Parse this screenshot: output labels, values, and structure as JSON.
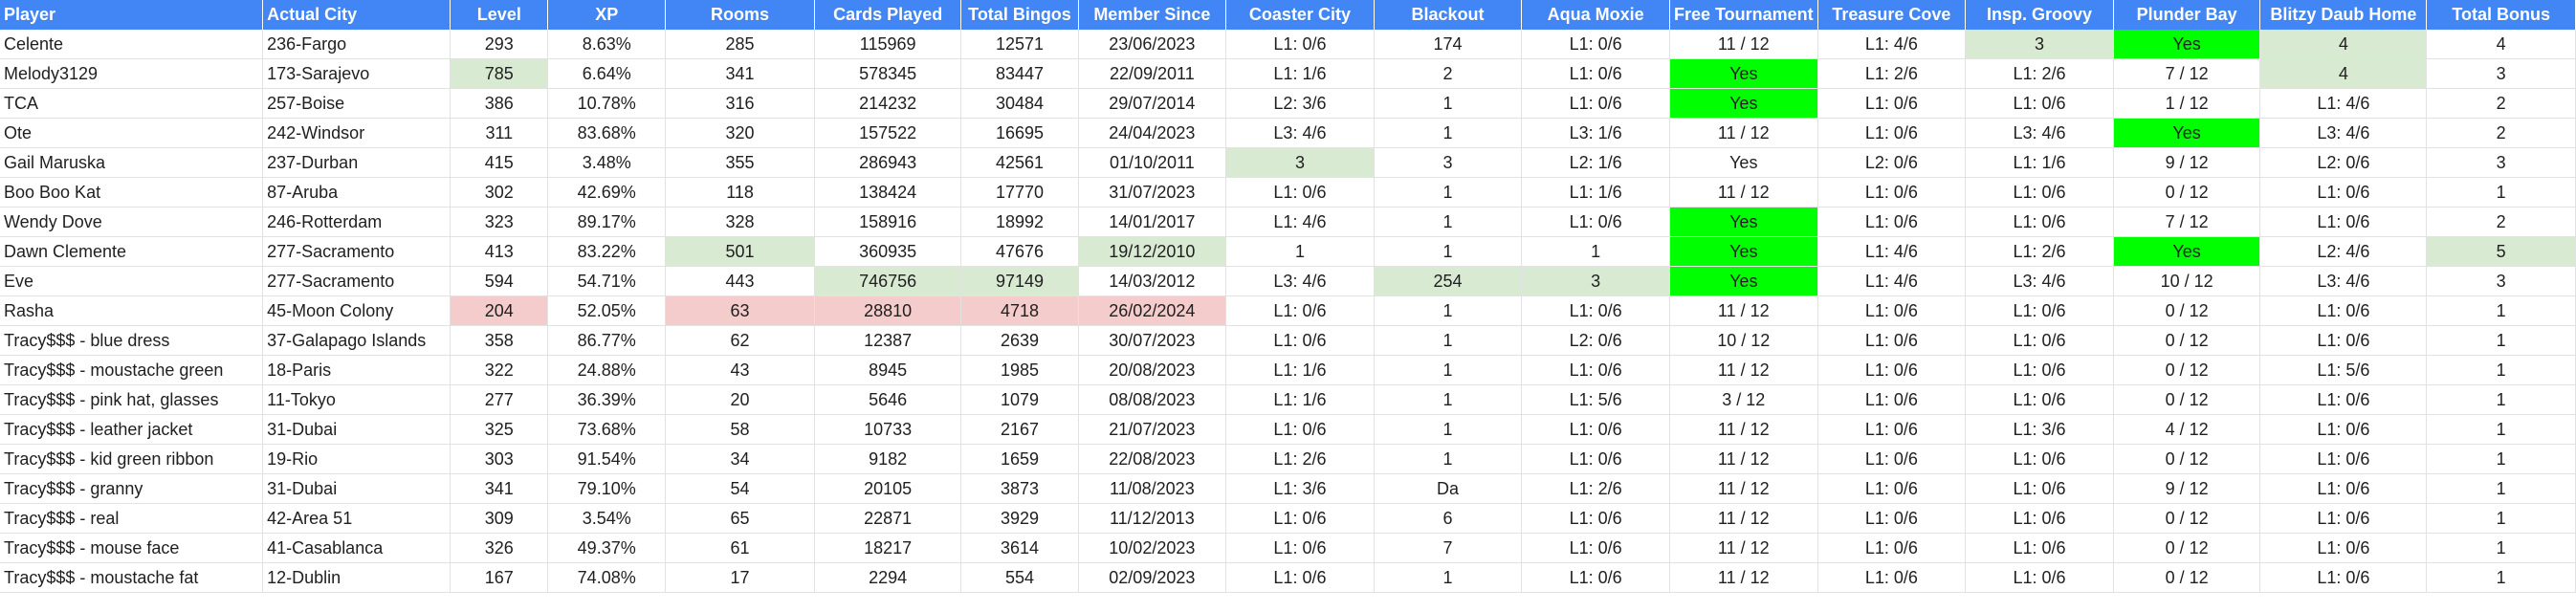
{
  "colors": {
    "header_bg": "#4285f4",
    "header_text": "#ffffff",
    "light_green": "#d9ead3",
    "lime": "#00ff00",
    "light_red": "#f4cccc",
    "gridline": "#e2e2e2"
  },
  "columns": [
    "Player",
    "Actual City",
    "Level",
    "XP",
    "Rooms",
    "Cards Played",
    "Total Bingos",
    "Member Since",
    "Coaster City",
    "Blackout",
    "Aqua Moxie",
    "Free Tournament",
    "Treasure Cove",
    "Insp. Groovy",
    "Plunder Bay",
    "Blitzy Daub Home",
    "Total Bonus"
  ],
  "rows": [
    {
      "cells": [
        "Celente",
        "236-Fargo",
        "293",
        "8.63%",
        "285",
        "115969",
        "12571",
        "23/06/2023",
        "L1: 0/6",
        "174",
        "L1: 0/6",
        "11 / 12",
        "L1: 4/6",
        "3",
        "Yes",
        "4",
        "4"
      ],
      "hl": {
        "13": "green",
        "14": "lime",
        "15": "green"
      }
    },
    {
      "cells": [
        "Melody3129",
        "173-Sarajevo",
        "785",
        "6.64%",
        "341",
        "578345",
        "83447",
        "22/09/2011",
        "L1: 1/6",
        "2",
        "L1: 0/6",
        "Yes",
        "L1: 2/6",
        "L1: 2/6",
        "7 / 12",
        "4",
        "3"
      ],
      "hl": {
        "2": "green",
        "11": "lime",
        "15": "green"
      }
    },
    {
      "cells": [
        "TCA",
        "257-Boise",
        "386",
        "10.78%",
        "316",
        "214232",
        "30484",
        "29/07/2014",
        "L2: 3/6",
        "1",
        "L1: 0/6",
        "Yes",
        "L1: 0/6",
        "L1: 0/6",
        "1 / 12",
        "L1: 4/6",
        "2"
      ],
      "hl": {
        "11": "lime"
      }
    },
    {
      "cells": [
        "Ote",
        "242-Windsor",
        "311",
        "83.68%",
        "320",
        "157522",
        "16695",
        "24/04/2023",
        "L3: 4/6",
        "1",
        "L3: 1/6",
        "11 / 12",
        "L1: 0/6",
        "L3: 4/6",
        "Yes",
        "L3: 4/6",
        "2"
      ],
      "hl": {
        "14": "lime"
      }
    },
    {
      "cells": [
        "Gail Maruska",
        "237-Durban",
        "415",
        "3.48%",
        "355",
        "286943",
        "42561",
        "01/10/2011",
        "3",
        "3",
        "L2: 1/6",
        "Yes",
        "L2: 0/6",
        "L1: 1/6",
        "9 / 12",
        "L2: 0/6",
        "3"
      ],
      "hl": {
        "8": "green"
      }
    },
    {
      "cells": [
        "Boo Boo Kat",
        "87-Aruba",
        "302",
        "42.69%",
        "118",
        "138424",
        "17770",
        "31/07/2023",
        "L1: 0/6",
        "1",
        "L1: 1/6",
        "11 / 12",
        "L1: 0/6",
        "L1: 0/6",
        "0 / 12",
        "L1: 0/6",
        "1"
      ],
      "hl": {}
    },
    {
      "cells": [
        "Wendy Dove",
        "246-Rotterdam",
        "323",
        "89.17%",
        "328",
        "158916",
        "18992",
        "14/01/2017",
        "L1: 4/6",
        "1",
        "L1: 0/6",
        "Yes",
        "L1: 0/6",
        "L1: 0/6",
        "7 / 12",
        "L1: 0/6",
        "2"
      ],
      "hl": {
        "11": "lime"
      }
    },
    {
      "cells": [
        "Dawn Clemente",
        "277-Sacramento",
        "413",
        "83.22%",
        "501",
        "360935",
        "47676",
        "19/12/2010",
        "1",
        "1",
        "1",
        "Yes",
        "L1: 4/6",
        "L1: 2/6",
        "Yes",
        "L2: 4/6",
        "5"
      ],
      "hl": {
        "4": "green",
        "7": "green",
        "11": "lime",
        "14": "lime",
        "16": "green"
      }
    },
    {
      "cells": [
        "Eve",
        "277-Sacramento",
        "594",
        "54.71%",
        "443",
        "746756",
        "97149",
        "14/03/2012",
        "L3: 4/6",
        "254",
        "3",
        "Yes",
        "L1: 4/6",
        "L3: 4/6",
        "10 / 12",
        "L3: 4/6",
        "3"
      ],
      "hl": {
        "5": "green",
        "6": "green",
        "9": "green",
        "10": "green",
        "11": "lime"
      }
    },
    {
      "cells": [
        "Rasha",
        "45-Moon Colony",
        "204",
        "52.05%",
        "63",
        "28810",
        "4718",
        "26/02/2024",
        "L1: 0/6",
        "1",
        "L1: 0/6",
        "11 / 12",
        "L1: 0/6",
        "L1: 0/6",
        "0 / 12",
        "L1: 0/6",
        "1"
      ],
      "hl": {
        "2": "red",
        "4": "red",
        "5": "red",
        "6": "red",
        "7": "red"
      }
    },
    {
      "cells": [
        "Tracy$$$ - blue dress",
        "37-Galapago Islands",
        "358",
        "86.77%",
        "62",
        "12387",
        "2639",
        "30/07/2023",
        "L1: 0/6",
        "1",
        "L2: 0/6",
        "10 / 12",
        "L1: 0/6",
        "L1: 0/6",
        "0 / 12",
        "L1: 0/6",
        "1"
      ],
      "hl": {}
    },
    {
      "cells": [
        "Tracy$$$ - moustache green",
        "18-Paris",
        "322",
        "24.88%",
        "43",
        "8945",
        "1985",
        "20/08/2023",
        "L1: 1/6",
        "1",
        "L1: 0/6",
        "11 / 12",
        "L1: 0/6",
        "L1: 0/6",
        "0 / 12",
        "L1: 5/6",
        "1"
      ],
      "hl": {}
    },
    {
      "cells": [
        "Tracy$$$ - pink hat, glasses",
        "11-Tokyo",
        "277",
        "36.39%",
        "20",
        "5646",
        "1079",
        "08/08/2023",
        "L1: 1/6",
        "1",
        "L1: 5/6",
        "3 / 12",
        "L1: 0/6",
        "L1: 0/6",
        "0 / 12",
        "L1: 0/6",
        "1"
      ],
      "hl": {}
    },
    {
      "cells": [
        "Tracy$$$ - leather jacket",
        "31-Dubai",
        "325",
        "73.68%",
        "58",
        "10733",
        "2167",
        "21/07/2023",
        "L1: 0/6",
        "1",
        "L1: 0/6",
        "11 / 12",
        "L1: 0/6",
        "L1: 3/6",
        "4 / 12",
        "L1: 0/6",
        "1"
      ],
      "hl": {}
    },
    {
      "cells": [
        "Tracy$$$ - kid green ribbon",
        "19-Rio",
        "303",
        "91.54%",
        "34",
        "9182",
        "1659",
        "22/08/2023",
        "L1: 2/6",
        "1",
        "L1: 0/6",
        "11 / 12",
        "L1: 0/6",
        "L1: 0/6",
        "0 / 12",
        "L1: 0/6",
        "1"
      ],
      "hl": {}
    },
    {
      "cells": [
        "Tracy$$$ - granny",
        "31-Dubai",
        "341",
        "79.10%",
        "54",
        "20105",
        "3873",
        "11/08/2023",
        "L1: 3/6",
        "Da",
        "L1: 2/6",
        "11 / 12",
        "L1: 0/6",
        "L1: 0/6",
        "9 / 12",
        "L1: 0/6",
        "1"
      ],
      "hl": {}
    },
    {
      "cells": [
        "Tracy$$$ - real",
        "42-Area 51",
        "309",
        "3.54%",
        "65",
        "22871",
        "3929",
        "11/12/2013",
        "L1: 0/6",
        "6",
        "L1: 0/6",
        "11 / 12",
        "L1: 0/6",
        "L1: 0/6",
        "0 / 12",
        "L1: 0/6",
        "1"
      ],
      "hl": {}
    },
    {
      "cells": [
        "Tracy$$$ - mouse face",
        "41-Casablanca",
        "326",
        "49.37%",
        "61",
        "18217",
        "3614",
        "10/02/2023",
        "L1: 0/6",
        "7",
        "L1: 0/6",
        "11 / 12",
        "L1: 0/6",
        "L1: 0/6",
        "0 / 12",
        "L1: 0/6",
        "1"
      ],
      "hl": {}
    },
    {
      "cells": [
        "Tracy$$$ - moustache fat",
        "12-Dublin",
        "167",
        "74.08%",
        "17",
        "2294",
        "554",
        "02/09/2023",
        "L1: 0/6",
        "1",
        "L1: 0/6",
        "11 / 12",
        "L1: 0/6",
        "L1: 0/6",
        "0 / 12",
        "L1: 0/6",
        "1"
      ],
      "hl": {}
    }
  ]
}
